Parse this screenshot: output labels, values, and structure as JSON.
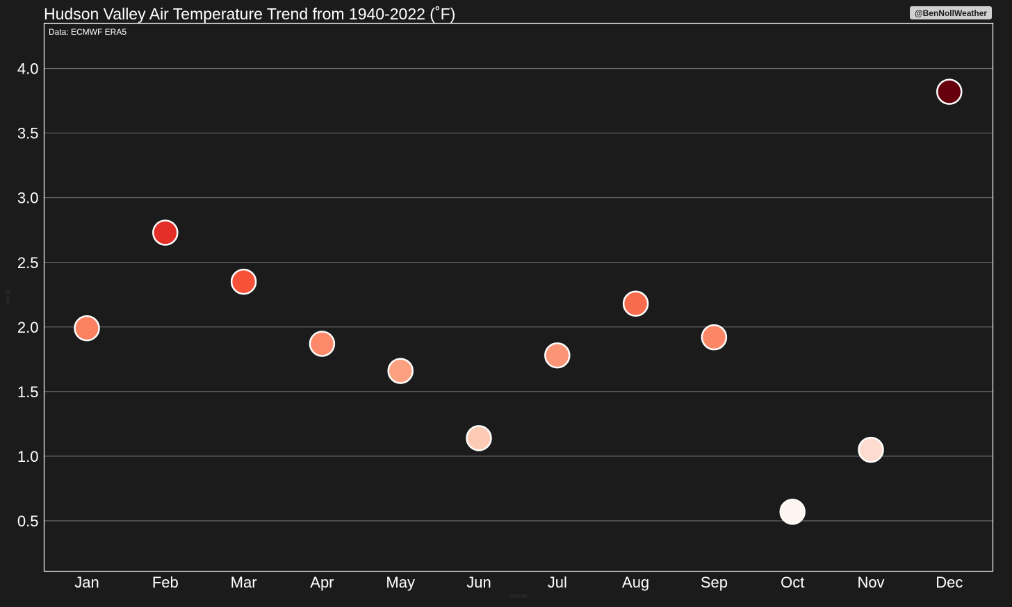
{
  "chart_data": {
    "type": "scatter",
    "title": "Hudson Valley Air Temperature Trend from 1940-2022 (˚F)",
    "source": "Data: ECMWF ERA5",
    "handle": "@BenNollWeather",
    "xlabel": "month",
    "ylabel": "trend",
    "categories": [
      "Jan",
      "Feb",
      "Mar",
      "Apr",
      "May",
      "Jun",
      "Jul",
      "Aug",
      "Sep",
      "Oct",
      "Nov",
      "Dec"
    ],
    "values": [
      1.99,
      2.73,
      2.35,
      1.87,
      1.66,
      1.14,
      1.78,
      2.18,
      1.92,
      0.57,
      1.05,
      3.82
    ],
    "colors": [
      "#fc8161",
      "#e32f27",
      "#f65139",
      "#fc8a6a",
      "#fca082",
      "#fdcab5",
      "#fc9576",
      "#f96b4d",
      "#fc8767",
      "#fff5f0",
      "#fddccf",
      "#67000d"
    ],
    "yticks": [
      "0.5",
      "1.0",
      "1.5",
      "2.0",
      "2.5",
      "3.0",
      "3.5",
      "4.0"
    ],
    "ylim": [
      0.11,
      4.35
    ],
    "grid": true,
    "legend": "none"
  },
  "colors": {
    "background": "#1b1b1b",
    "axes_edge": "#ffffff",
    "grid": "#808080",
    "marker_edge": "#ffffff",
    "handle_box": "#d0d0d0"
  }
}
